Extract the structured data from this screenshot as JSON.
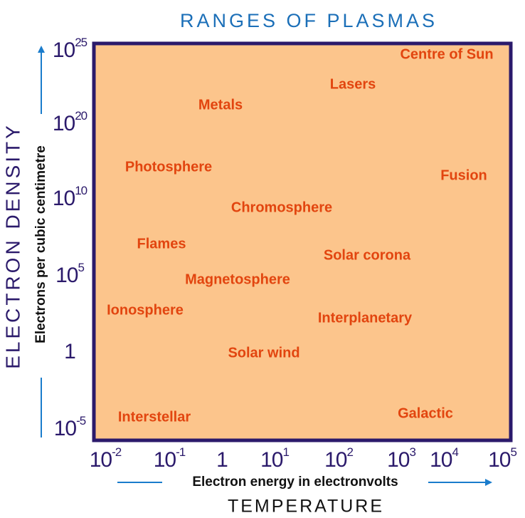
{
  "title": "RANGES OF PLASMAS",
  "y_axis": {
    "title": "ELECTRON DENSITY",
    "label": "Electrons per cubic centimetre",
    "ticks": [
      {
        "base": "10",
        "exp": "25"
      },
      {
        "base": "10",
        "exp": "20"
      },
      {
        "base": "10",
        "exp": "10"
      },
      {
        "base": "10",
        "exp": "5"
      },
      {
        "base": "1"
      },
      {
        "base": "10",
        "exp": "-5"
      }
    ]
  },
  "x_axis": {
    "title": "TEMPERATURE",
    "label": "Electron energy in electronvolts",
    "ticks": [
      {
        "base": "10",
        "exp": "-2"
      },
      {
        "base": "10",
        "exp": "-1"
      },
      {
        "base": "1"
      },
      {
        "base": "10",
        "exp": "1"
      },
      {
        "base": "10",
        "exp": "2"
      },
      {
        "base": "10",
        "exp": "3"
      },
      {
        "base": "10",
        "exp": "4"
      },
      {
        "base": "10",
        "exp": "5"
      }
    ]
  },
  "regions": [
    "Centre of Sun",
    "Lasers",
    "Metals",
    "Photosphere",
    "Fusion",
    "Chromosphere",
    "Flames",
    "Solar corona",
    "Magnetosphere",
    "Ionosphere",
    "Interplanetary",
    "Solar wind",
    "Interstellar",
    "Galactic"
  ]
}
